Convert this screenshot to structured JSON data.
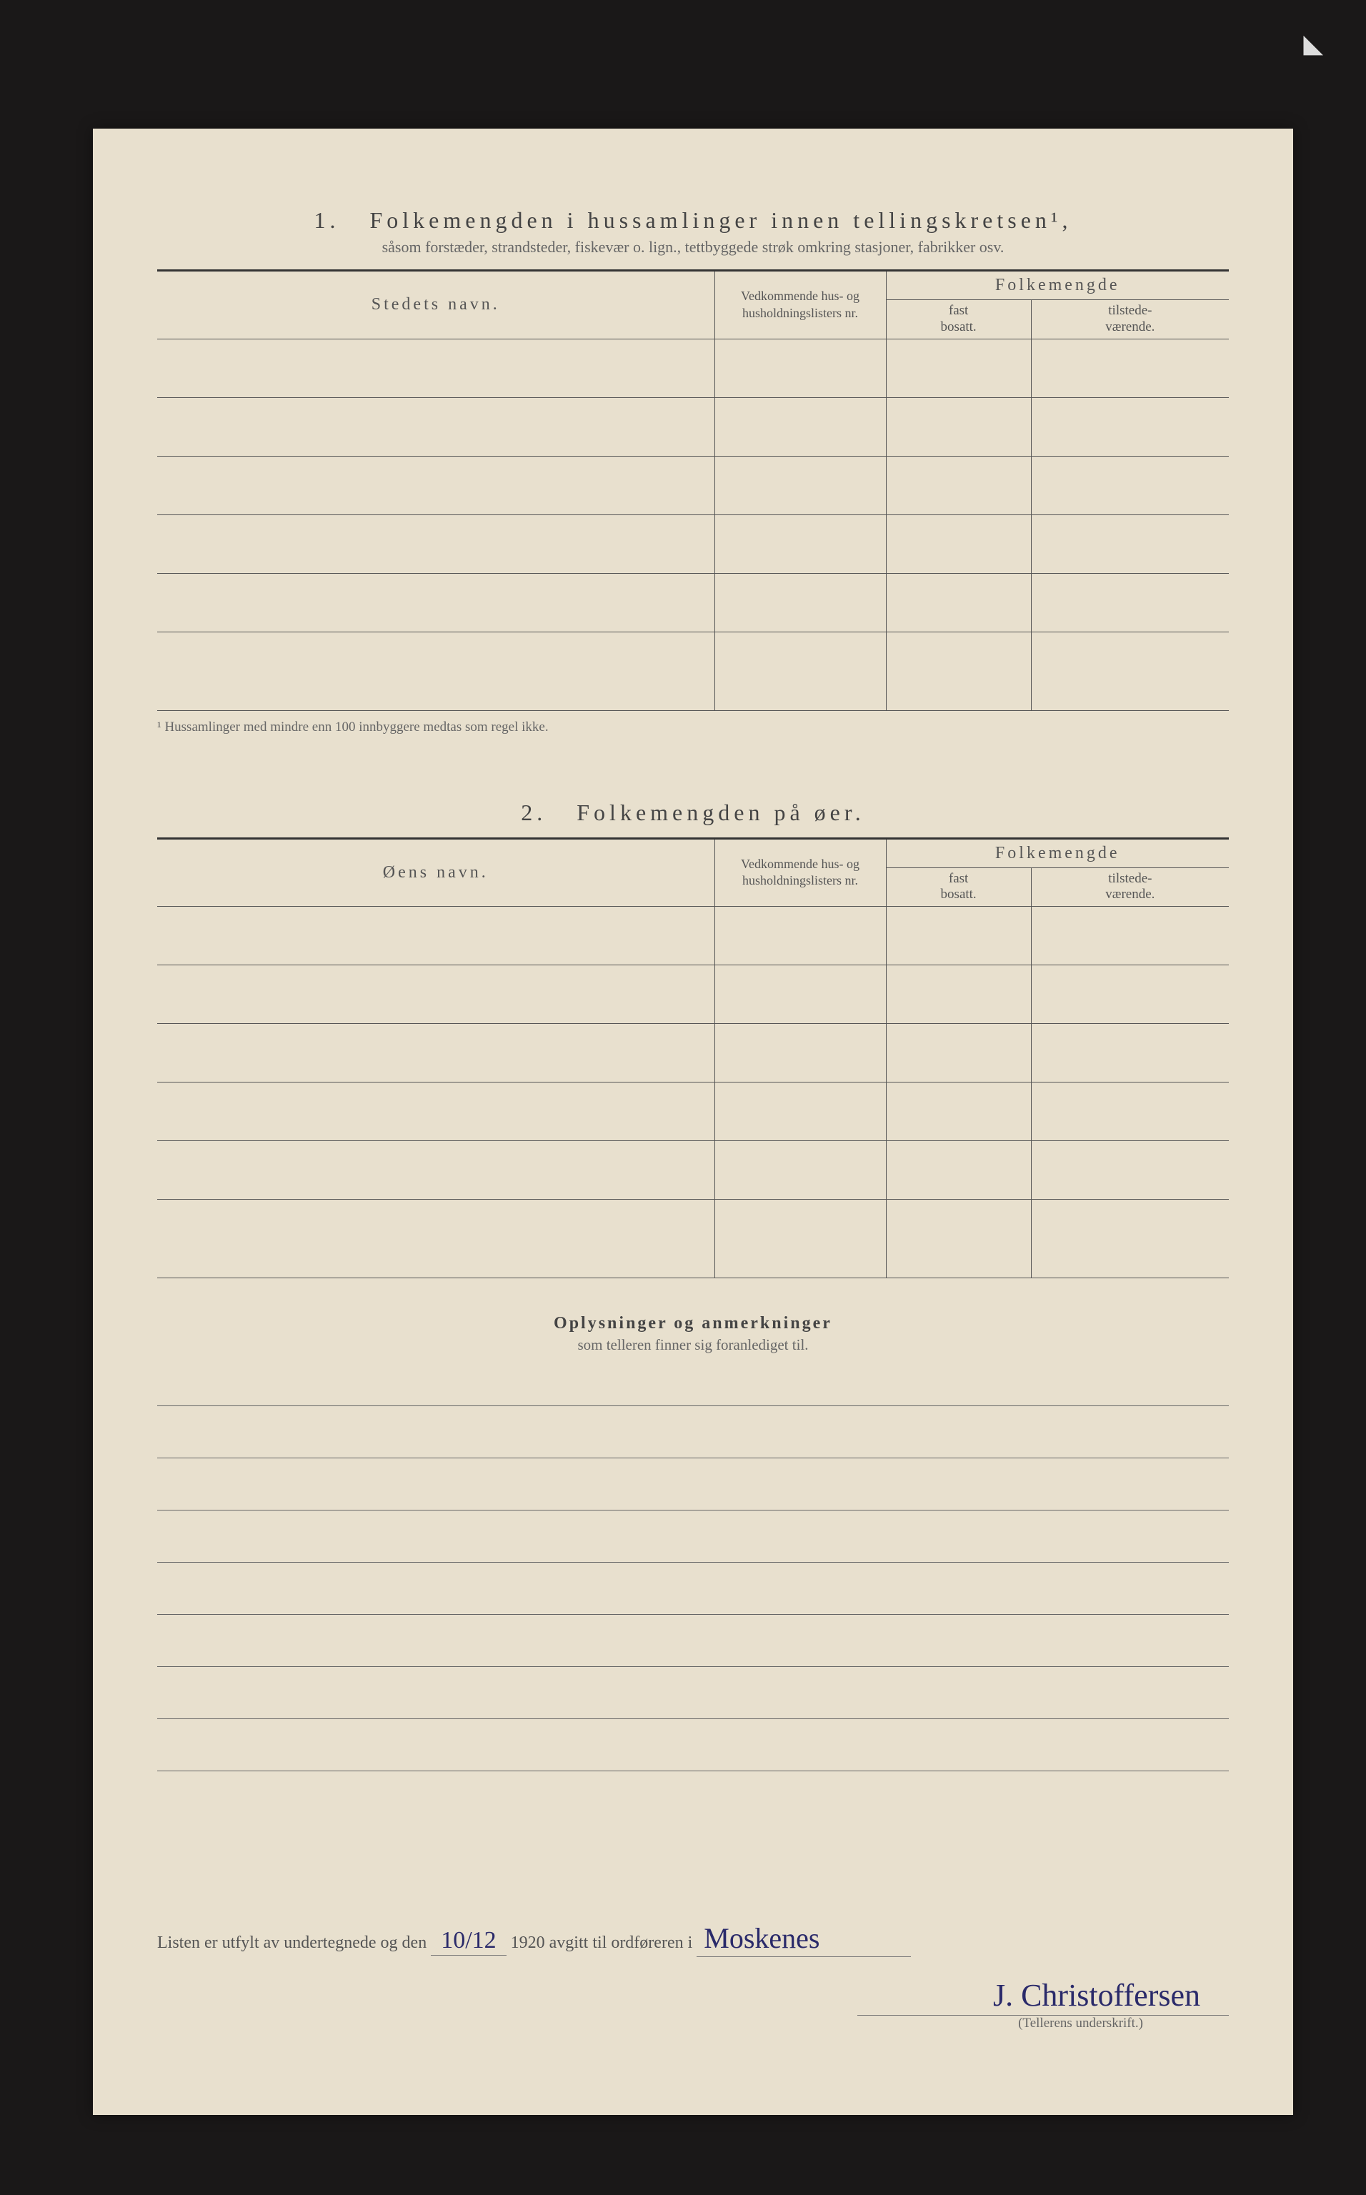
{
  "corner_mark": "◣",
  "section1": {
    "number": "1.",
    "title": "Folkemengden i hussamlinger innen tellingskretsen¹,",
    "subtitle": "såsom forstæder, strandsteder, fiskevær o. lign., tettbyggede strøk omkring stasjoner, fabrikker osv.",
    "col_name": "Stedets navn.",
    "col_list": "Vedkommende hus- og husholdningslisters nr.",
    "col_folk": "Folkemengde",
    "col_fast": "fast",
    "col_fast2": "bosatt.",
    "col_til": "tilstede-",
    "col_til2": "værende.",
    "footnote": "¹ Hussamlinger med mindre enn 100 innbyggere medtas som regel ikke."
  },
  "section2": {
    "number": "2.",
    "title": "Folkemengden på øer.",
    "col_name": "Øens navn.",
    "col_list": "Vedkommende hus- og husholdningslisters nr.",
    "col_folk": "Folkemengde",
    "col_fast": "fast",
    "col_fast2": "bosatt.",
    "col_til": "tilstede-",
    "col_til2": "værende."
  },
  "oplys": {
    "title": "Oplysninger og anmerkninger",
    "subtitle": "som telleren finner sig foranlediget til."
  },
  "signature": {
    "prefix": "Listen er utfylt av undertegnede og den",
    "date": "10/12",
    "mid": "1920 avgitt til ordføreren i",
    "place": "Moskenes",
    "name": "J. Christoffersen",
    "caption": "(Tellerens underskrift.)"
  }
}
